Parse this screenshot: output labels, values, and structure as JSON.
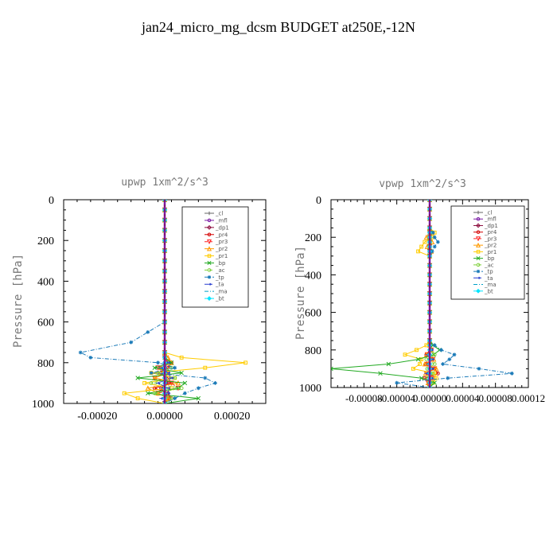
{
  "title": "jan24_micro_mg_dcsm  BUDGET at250E,-12N",
  "chart_data": [
    {
      "type": "line",
      "title": "upwp   1xm^2/s^3",
      "xlabel": "",
      "ylabel": "Pressure [hPa]",
      "xlim": [
        -0.0003,
        0.0003
      ],
      "ylim": [
        1000,
        0
      ],
      "xticks": [
        -0.0002,
        0.0,
        0.0002
      ],
      "xticklabels": [
        "-0.00020",
        "0.00000",
        "0.00020"
      ],
      "yticks": [
        0,
        200,
        400,
        600,
        800,
        1000
      ],
      "yticklabels": [
        "0",
        "200",
        "400",
        "600",
        "800",
        "1000"
      ],
      "legend_position": "top-right",
      "levels": [
        0,
        50,
        100,
        150,
        200,
        250,
        300,
        350,
        400,
        450,
        500,
        550,
        600,
        650,
        700,
        750,
        775,
        800,
        825,
        850,
        875,
        900,
        925,
        950,
        975,
        1000
      ],
      "series": [
        {
          "name": "_cl",
          "color": "#666666",
          "dash": "solid",
          "marker": "plus",
          "values": [
            0,
            0,
            0,
            0,
            0,
            0,
            0,
            0,
            0,
            0,
            0,
            0,
            0,
            0,
            0,
            0,
            0,
            0,
            0,
            0,
            0,
            0,
            0,
            0,
            0,
            0
          ]
        },
        {
          "name": "_mfl",
          "color": "#7a1aa5",
          "dash": "solid",
          "marker": "circle",
          "values": [
            0,
            0,
            0,
            0,
            0,
            0,
            0,
            0,
            0,
            0,
            0,
            0,
            0,
            0,
            0,
            0,
            0,
            0,
            0,
            0,
            0,
            0,
            0,
            0,
            0,
            0
          ]
        },
        {
          "name": "_dp1",
          "color": "#8b0a3c",
          "dash": "solid",
          "marker": "diamond",
          "values": [
            0,
            0,
            0,
            0,
            0,
            0,
            0,
            0,
            0,
            0,
            0,
            0,
            0,
            0,
            0,
            0,
            0,
            1e-05,
            0,
            -1e-05,
            0,
            1e-05,
            -1e-05,
            0,
            1e-05,
            0
          ]
        },
        {
          "name": "_pr4",
          "color": "#d40000",
          "dash": "solid",
          "marker": "circle",
          "values": [
            0,
            0,
            0,
            0,
            0,
            0,
            0,
            0,
            0,
            0,
            0,
            0,
            0,
            0,
            0,
            0,
            0,
            2e-05,
            1e-05,
            -2e-05,
            1e-05,
            2e-05,
            -3e-05,
            1e-05,
            2e-05,
            0
          ]
        },
        {
          "name": "_pr3",
          "color": "#ff2020",
          "dash": "dash",
          "marker": "triangle-down",
          "values": [
            0,
            0,
            0,
            0,
            0,
            0,
            0,
            0,
            0,
            0,
            0,
            0,
            0,
            0,
            0,
            0,
            0,
            1e-05,
            -2e-05,
            1e-05,
            -3e-05,
            2e-05,
            4e-05,
            -2e-05,
            1e-05,
            0
          ]
        },
        {
          "name": "_pr2",
          "color": "#ff9a00",
          "dash": "solid",
          "marker": "triangle",
          "values": [
            0,
            0,
            0,
            0,
            0,
            0,
            0,
            0,
            0,
            0,
            0,
            0,
            0,
            0,
            0,
            0,
            1e-05,
            2e-05,
            -1e-05,
            1e-05,
            -3e-05,
            4e-05,
            -5e-05,
            -2e-05,
            1e-05,
            0
          ]
        },
        {
          "name": "_pr1",
          "color": "#ffcc00",
          "dash": "solid",
          "marker": "square",
          "values": [
            0,
            0,
            0,
            0,
            0,
            0,
            0,
            0,
            0,
            0,
            0,
            0,
            0,
            0,
            0,
            0,
            5e-05,
            0.00024,
            0.00012,
            -4e-05,
            3e-05,
            -6e-05,
            2e-05,
            -0.00012,
            -8e-05,
            0
          ]
        },
        {
          "name": "_bp",
          "color": "#22aa22",
          "dash": "solid",
          "marker": "x",
          "values": [
            0,
            0,
            0,
            0,
            0,
            0,
            0,
            0,
            0,
            0,
            0,
            0,
            0,
            0,
            0,
            0,
            0,
            2e-05,
            -3e-05,
            5e-05,
            -8e-05,
            6e-05,
            4e-05,
            -5e-05,
            0.0001,
            0
          ]
        },
        {
          "name": "_ac",
          "color": "#7ed03a",
          "dash": "dash",
          "marker": "circle",
          "values": [
            0,
            0,
            0,
            0,
            0,
            0,
            0,
            0,
            0,
            0,
            0,
            0,
            0,
            0,
            0,
            0,
            0,
            1e-05,
            2e-05,
            -2e-05,
            3e-05,
            -4e-05,
            5e-05,
            -3e-05,
            2e-05,
            0
          ]
        },
        {
          "name": "_tp",
          "color": "#1a7ab8",
          "dash": "dashdot",
          "marker": "star",
          "values": [
            0,
            0,
            0,
            0,
            0,
            0,
            0,
            0,
            0,
            0,
            0,
            0,
            0,
            -5e-05,
            -0.0001,
            -0.00025,
            -0.00022,
            -2e-05,
            3e-05,
            -4e-05,
            0.00012,
            0.00015,
            0.0001,
            6e-05,
            3e-05,
            0
          ]
        },
        {
          "name": "_ta",
          "color": "#2a3fd0",
          "dash": "dash",
          "marker": "arrow",
          "values": [
            0,
            0,
            0,
            0,
            0,
            0,
            0,
            0,
            0,
            0,
            0,
            0,
            0,
            0,
            0,
            0,
            0,
            1e-05,
            -1e-05,
            1e-05,
            2e-05,
            -2e-05,
            1e-05,
            1e-05,
            -1e-05,
            0
          ]
        },
        {
          "name": "_ma",
          "color": "#00a0c8",
          "dash": "dashdot",
          "marker": "none",
          "values": [
            0,
            0,
            0,
            0,
            0,
            0,
            0,
            0,
            0,
            0,
            0,
            0,
            0,
            0,
            0,
            0,
            0,
            0,
            0,
            0,
            0,
            0,
            0,
            0,
            0,
            0
          ]
        },
        {
          "name": "_bt",
          "color": "#00e5ff",
          "dash": "solid",
          "marker": "diamond-filled",
          "values": [
            0,
            0,
            0,
            0,
            0,
            0,
            0,
            0,
            0,
            0,
            0,
            0,
            0,
            0,
            0,
            0,
            0,
            0,
            0,
            0,
            0,
            0,
            0,
            0,
            0,
            0
          ]
        }
      ]
    },
    {
      "type": "line",
      "title": "vpwp   1xm^2/s^3",
      "xlabel": "",
      "ylabel": "Pressure [hPa]",
      "xlim": [
        -0.00012,
        0.00012
      ],
      "ylim": [
        1000,
        0
      ],
      "xticks": [
        -8e-05,
        -4e-05,
        0.0,
        4e-05,
        8e-05,
        0.00012
      ],
      "xticklabels": [
        "-0.00008",
        "-0.00004",
        "0.00000",
        "0.00004",
        "0.00008",
        "0.00012"
      ],
      "yticks": [
        0,
        200,
        400,
        600,
        800,
        1000
      ],
      "yticklabels": [
        "0",
        "200",
        "400",
        "600",
        "800",
        "1000"
      ],
      "legend_position": "top-right",
      "levels": [
        0,
        50,
        100,
        150,
        175,
        200,
        225,
        250,
        275,
        300,
        350,
        400,
        450,
        500,
        550,
        600,
        650,
        700,
        750,
        775,
        800,
        825,
        850,
        875,
        900,
        925,
        950,
        975,
        1000
      ],
      "series": [
        {
          "name": "_cl",
          "color": "#666666",
          "dash": "solid",
          "marker": "plus",
          "values": [
            0,
            0,
            0,
            0,
            0,
            0,
            0,
            0,
            0,
            0,
            0,
            0,
            0,
            0,
            0,
            0,
            0,
            0,
            0,
            0,
            0,
            0,
            0,
            0,
            0,
            0,
            0,
            0,
            0
          ]
        },
        {
          "name": "_mfl",
          "color": "#7a1aa5",
          "dash": "solid",
          "marker": "circle",
          "values": [
            0,
            0,
            0,
            0,
            0,
            0,
            0,
            0,
            0,
            0,
            0,
            0,
            0,
            0,
            0,
            0,
            0,
            0,
            0,
            0,
            0,
            0,
            0,
            0,
            0,
            0,
            0,
            0,
            0
          ]
        },
        {
          "name": "_dp1",
          "color": "#8b0a3c",
          "dash": "solid",
          "marker": "diamond",
          "values": [
            0,
            0,
            0,
            0,
            0,
            0,
            0,
            0,
            0,
            0,
            0,
            0,
            0,
            0,
            0,
            0,
            0,
            0,
            0,
            0,
            2e-06,
            -2e-06,
            3e-06,
            -3e-06,
            2e-06,
            -2e-06,
            1e-06,
            0,
            0
          ]
        },
        {
          "name": "_pr4",
          "color": "#d40000",
          "dash": "solid",
          "marker": "circle",
          "values": [
            0,
            0,
            0,
            0,
            0,
            0,
            0,
            0,
            0,
            0,
            0,
            0,
            0,
            0,
            0,
            0,
            0,
            0,
            0,
            0,
            0,
            -4e-06,
            3e-06,
            -5e-06,
            6e-06,
            1e-05,
            -6e-06,
            4e-06,
            0
          ]
        },
        {
          "name": "_pr3",
          "color": "#ff2020",
          "dash": "dash",
          "marker": "triangle-down",
          "values": [
            0,
            0,
            0,
            0,
            0,
            0,
            0,
            0,
            0,
            0,
            0,
            0,
            0,
            0,
            0,
            0,
            0,
            0,
            0,
            0,
            2e-06,
            -3e-06,
            4e-06,
            -2e-06,
            6e-06,
            -4e-06,
            3e-06,
            -2e-06,
            0
          ]
        },
        {
          "name": "_pr2",
          "color": "#ff9a00",
          "dash": "solid",
          "marker": "triangle",
          "values": [
            0,
            0,
            0,
            0,
            3e-06,
            -4e-06,
            3e-06,
            -3e-06,
            2e-06,
            0,
            0,
            0,
            0,
            0,
            0,
            0,
            0,
            0,
            0,
            0,
            2e-06,
            -4e-06,
            5e-06,
            -6e-06,
            8e-06,
            -5e-06,
            4e-06,
            -2e-06,
            0
          ]
        },
        {
          "name": "_pr1",
          "color": "#ffcc00",
          "dash": "solid",
          "marker": "square",
          "values": [
            0,
            0,
            0,
            0,
            6e-06,
            4e-06,
            -6e-06,
            -1e-05,
            -1.4e-05,
            0,
            0,
            0,
            0,
            0,
            0,
            0,
            0,
            0,
            0,
            -4e-06,
            -1.6e-05,
            -3e-05,
            -1e-05,
            -1.2e-05,
            -2e-05,
            6e-06,
            8e-06,
            4e-06,
            0
          ]
        },
        {
          "name": "_bp",
          "color": "#22aa22",
          "dash": "solid",
          "marker": "x",
          "values": [
            0,
            0,
            0,
            0,
            0,
            0,
            0,
            0,
            0,
            0,
            0,
            0,
            0,
            0,
            0,
            0,
            0,
            0,
            0,
            4e-06,
            1.2e-05,
            5e-06,
            -1.4e-05,
            -5e-05,
            -0.00012,
            -6e-05,
            -1e-05,
            6e-06,
            0
          ]
        },
        {
          "name": "_ac",
          "color": "#7ed03a",
          "dash": "dash",
          "marker": "circle",
          "values": [
            0,
            0,
            0,
            0,
            0,
            0,
            0,
            0,
            0,
            0,
            0,
            0,
            0,
            0,
            0,
            0,
            0,
            0,
            0,
            0,
            2e-06,
            6e-06,
            -4e-06,
            6e-06,
            -3e-06,
            4e-06,
            -3e-06,
            2e-06,
            0
          ]
        },
        {
          "name": "_tp",
          "color": "#1a7ab8",
          "dash": "dashdot",
          "marker": "star",
          "values": [
            0,
            0,
            0,
            0,
            4e-06,
            6e-06,
            1e-05,
            6e-06,
            3e-06,
            0,
            0,
            0,
            0,
            0,
            0,
            0,
            0,
            0,
            0,
            6e-06,
            1.4e-05,
            3e-05,
            2.4e-05,
            1.6e-05,
            6e-05,
            0.0001,
            2.2e-05,
            -4e-05,
            0
          ]
        },
        {
          "name": "_ta",
          "color": "#2a3fd0",
          "dash": "dash",
          "marker": "arrow",
          "values": [
            0,
            0,
            0,
            0,
            0,
            0,
            0,
            0,
            0,
            0,
            0,
            0,
            0,
            0,
            0,
            0,
            0,
            0,
            0,
            0,
            2e-06,
            -3e-06,
            3e-06,
            -2e-06,
            3e-06,
            -4e-06,
            2e-06,
            0,
            0
          ]
        },
        {
          "name": "_ma",
          "color": "#00a0c8",
          "dash": "dashdot",
          "marker": "none",
          "values": [
            0,
            0,
            0,
            0,
            0,
            0,
            0,
            0,
            0,
            0,
            0,
            0,
            0,
            0,
            0,
            0,
            0,
            0,
            0,
            0,
            0,
            0,
            0,
            0,
            0,
            0,
            0,
            0,
            0
          ]
        },
        {
          "name": "_bt",
          "color": "#00e5ff",
          "dash": "solid",
          "marker": "diamond-filled",
          "values": [
            0,
            0,
            0,
            0,
            0,
            0,
            0,
            0,
            0,
            0,
            0,
            0,
            0,
            0,
            0,
            0,
            0,
            0,
            0,
            0,
            0,
            0,
            0,
            0,
            0,
            0,
            0,
            0,
            0
          ]
        }
      ]
    }
  ]
}
